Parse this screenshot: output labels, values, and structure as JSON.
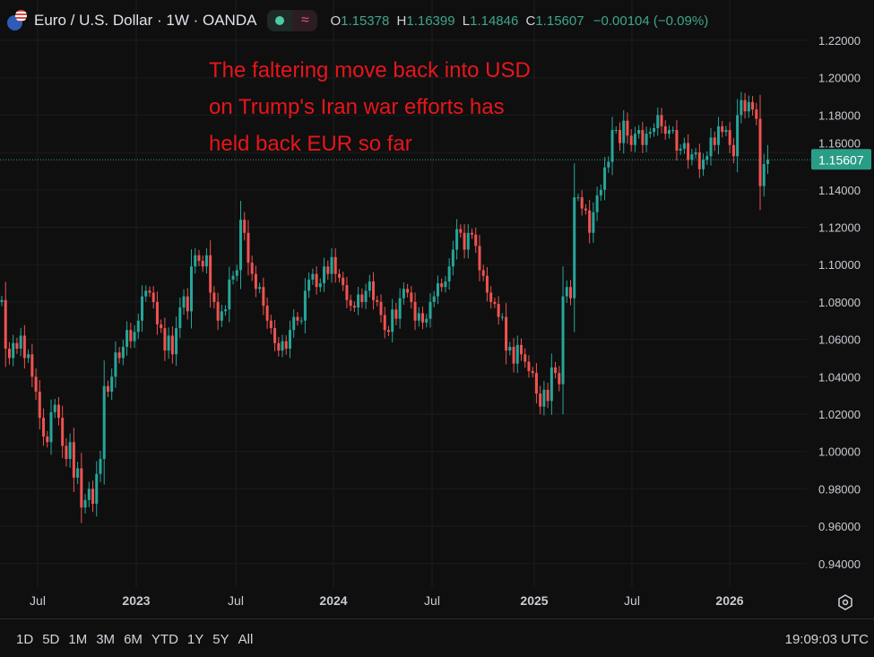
{
  "header": {
    "title": "Euro / U.S. Dollar · 1W · OANDA",
    "ohlc": {
      "o_label": "O",
      "o": "1.15378",
      "h_label": "H",
      "h": "1.16399",
      "l_label": "L",
      "l": "1.14846",
      "c_label": "C",
      "c": "1.15607",
      "change": "−0.00104 (−0.09%)"
    },
    "icons": [
      "eur-usd-flag-icon",
      "market-open-dot-icon",
      "approx-wave-icon"
    ]
  },
  "annotation": {
    "lines": [
      "The faltering move back into USD",
      "on Trump's Iran war efforts has",
      "held back EUR so far"
    ],
    "color": "#e8161b"
  },
  "footer": {
    "ranges": [
      "1D",
      "5D",
      "1M",
      "3M",
      "6M",
      "YTD",
      "1Y",
      "5Y",
      "All"
    ],
    "clock": "19:09:03 UTC"
  },
  "colors": {
    "up": "#26a69a",
    "down": "#ef5350",
    "background": "#0f0f0f",
    "price_label": "#2a9d86"
  },
  "chart_data": {
    "type": "candlestick",
    "interval": "1W",
    "x_range": [
      "2022-04",
      "2026-03"
    ],
    "x_tick_labels": [
      "Jul",
      "2023",
      "Jul",
      "2024",
      "Jul",
      "2025",
      "Jul",
      "2026"
    ],
    "y_tick_labels": [
      "1.22000",
      "1.20000",
      "1.18000",
      "1.16000",
      "1.14000",
      "1.12000",
      "1.10000",
      "1.08000",
      "1.06000",
      "1.04000",
      "1.02000",
      "1.00000",
      "0.98000",
      "0.96000",
      "0.94000"
    ],
    "ylim": [
      0.925,
      1.23
    ],
    "grid": true,
    "last_price": 1.15607,
    "last_price_label": "1.15607",
    "first_open": 1.08,
    "last_candle": {
      "open": 1.15378,
      "high": 1.16399,
      "low": 1.14846,
      "close": 1.15607
    },
    "weekly_close": [
      1.081,
      1.055,
      1.05,
      1.058,
      1.055,
      1.062,
      1.05,
      1.052,
      1.04,
      1.032,
      1.018,
      1.008,
      1.005,
      1.021,
      1.025,
      1.018,
      1.003,
      0.996,
      1.005,
      0.986,
      0.991,
      0.97,
      0.974,
      0.98,
      0.972,
      0.988,
      0.996,
      1.035,
      1.032,
      1.04,
      1.053,
      1.05,
      1.056,
      1.065,
      1.059,
      1.064,
      1.07,
      1.083,
      1.086,
      1.085,
      1.08,
      1.068,
      1.066,
      1.054,
      1.062,
      1.052,
      1.066,
      1.077,
      1.083,
      1.075,
      1.099,
      1.105,
      1.102,
      1.099,
      1.105,
      1.085,
      1.08,
      1.07,
      1.075,
      1.076,
      1.092,
      1.094,
      1.097,
      1.124,
      1.117,
      1.101,
      1.095,
      1.087,
      1.088,
      1.078,
      1.07,
      1.066,
      1.058,
      1.054,
      1.059,
      1.055,
      1.065,
      1.072,
      1.07,
      1.07,
      1.086,
      1.092,
      1.095,
      1.088,
      1.09,
      1.099,
      1.095,
      1.104,
      1.095,
      1.093,
      1.089,
      1.081,
      1.078,
      1.077,
      1.084,
      1.08,
      1.086,
      1.091,
      1.081,
      1.08,
      1.073,
      1.065,
      1.064,
      1.076,
      1.071,
      1.082,
      1.087,
      1.085,
      1.08,
      1.07,
      1.074,
      1.069,
      1.071,
      1.08,
      1.083,
      1.09,
      1.088,
      1.091,
      1.099,
      1.108,
      1.119,
      1.117,
      1.108,
      1.117,
      1.116,
      1.11,
      1.097,
      1.094,
      1.085,
      1.08,
      1.079,
      1.072,
      1.072,
      1.054,
      1.056,
      1.047,
      1.057,
      1.052,
      1.048,
      1.043,
      1.042,
      1.031,
      1.024,
      1.033,
      1.027,
      1.045,
      1.042,
      1.036,
      1.083,
      1.088,
      1.082,
      1.136,
      1.136,
      1.13,
      1.129,
      1.117,
      1.128,
      1.137,
      1.14,
      1.152,
      1.155,
      1.172,
      1.172,
      1.165,
      1.177,
      1.169,
      1.164,
      1.17,
      1.172,
      1.164,
      1.17,
      1.171,
      1.173,
      1.18,
      1.174,
      1.17,
      1.172,
      1.172,
      1.161,
      1.162,
      1.165,
      1.156,
      1.159,
      1.16,
      1.151,
      1.156,
      1.158,
      1.168,
      1.164,
      1.174,
      1.171,
      1.172,
      1.164,
      1.158,
      1.18,
      1.188,
      1.182,
      1.187,
      1.183,
      1.178,
      1.142,
      1.1538,
      1.1561
    ]
  }
}
